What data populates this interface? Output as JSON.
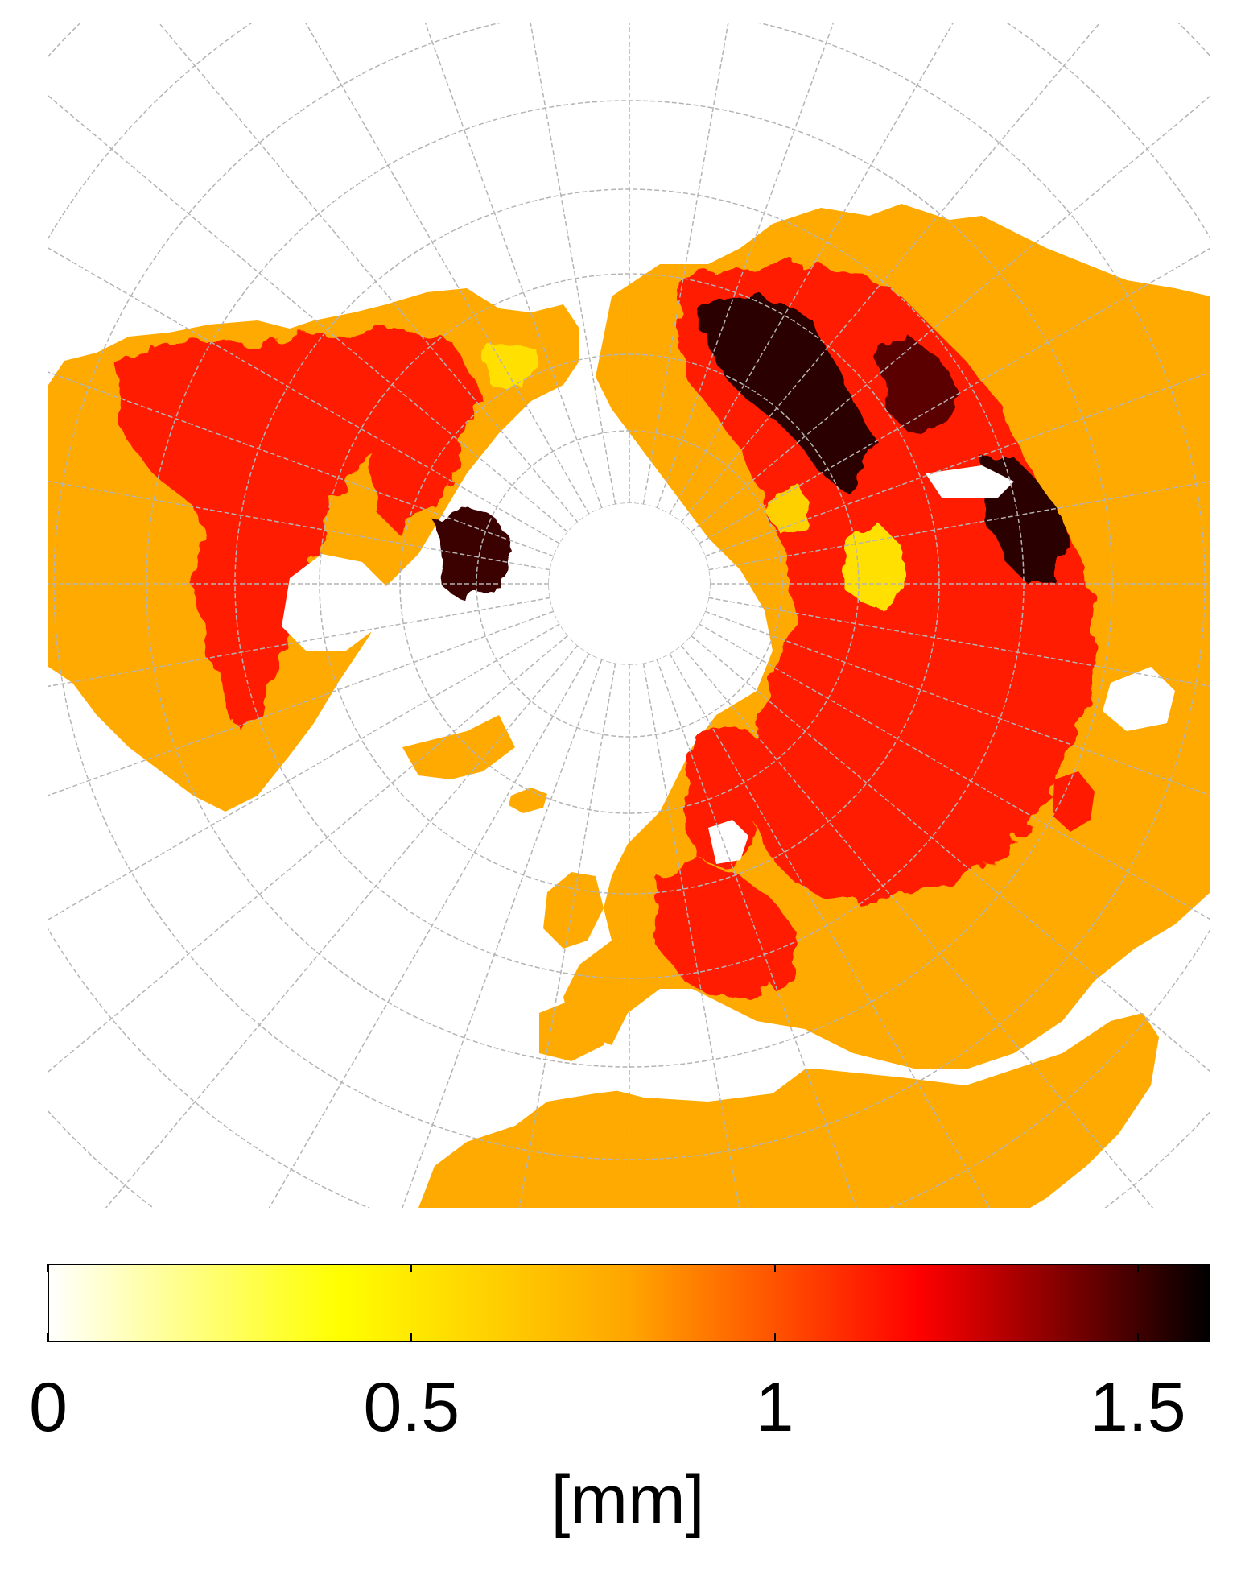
{
  "map": {
    "projection": "polar-stereographic-north",
    "graticule": true,
    "palette": {
      "ocean": "#ffffff",
      "grid": "#b4b4b4",
      "orange": "#ffaa00",
      "red": "#ff1a00",
      "dark_red": "#8b0000",
      "black": "#1a0000",
      "yellow": "#ffe000"
    }
  },
  "colorbar": {
    "colormap": "hot-reversed",
    "stops": [
      "#ffffff",
      "#ffff00",
      "#ffa500",
      "#ff0000",
      "#000000"
    ],
    "min": 0,
    "max": 1.6,
    "ticks": [
      {
        "value": 0,
        "label": "0"
      },
      {
        "value": 0.5,
        "label": "0.5"
      },
      {
        "value": 1,
        "label": "1"
      },
      {
        "value": 1.5,
        "label": "1.5"
      }
    ],
    "unit": "[mm]"
  }
}
